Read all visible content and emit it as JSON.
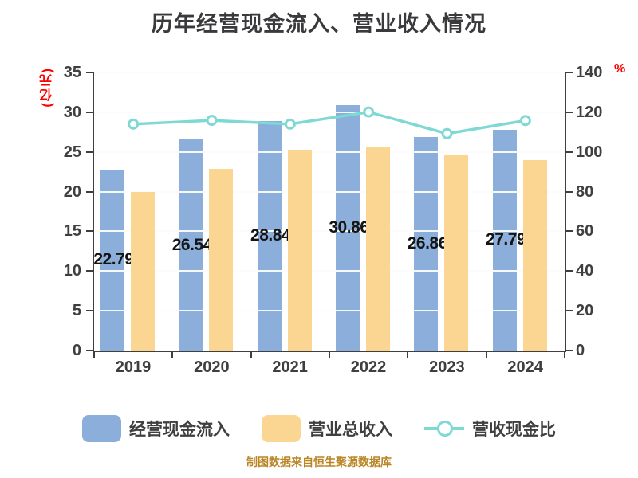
{
  "title": "历年经营现金流入、营业收入情况",
  "caption": "制图数据来自恒生聚源数据库",
  "colors": {
    "cash_inflow_bar": "#8baedb",
    "revenue_bar": "#fad692",
    "ratio_line": "#7ed9d4",
    "axis_unit_text": "#ff0000",
    "title_text": "#3a3a3c",
    "tick_text": "#3f3f3f",
    "caption_text": "#ba8525"
  },
  "left_axis": {
    "unit": "(亿元)",
    "min": 0,
    "max": 35,
    "step": 5,
    "ticks": [
      0,
      5,
      10,
      15,
      20,
      25,
      30,
      35
    ]
  },
  "right_axis": {
    "unit": "%",
    "min": 0,
    "max": 140,
    "step": 20,
    "ticks": [
      0,
      20,
      40,
      60,
      80,
      100,
      120,
      140
    ]
  },
  "chart_data": {
    "type": "bar",
    "title": "历年经营现金流入、营业收入情况",
    "categories": [
      "2019",
      "2020",
      "2021",
      "2022",
      "2023",
      "2024"
    ],
    "series": [
      {
        "name": "经营现金流入",
        "type": "bar",
        "axis": "left",
        "color": "#8baedb",
        "values": [
          22.79,
          26.543,
          28.84,
          30.868,
          26.86,
          27.791
        ],
        "data_labels": [
          "22.790",
          "26.543",
          "28.840",
          "30.868",
          "26.860",
          "27.791"
        ]
      },
      {
        "name": "营业总收入",
        "type": "bar",
        "axis": "left",
        "color": "#fad692",
        "values": [
          20.0,
          22.9,
          25.3,
          25.7,
          24.6,
          24.0
        ]
      },
      {
        "name": "营收现金比",
        "type": "line",
        "axis": "right",
        "color": "#7ed9d4",
        "marker": "circle",
        "values": [
          114.0,
          115.9,
          114.0,
          120.1,
          109.2,
          115.8
        ]
      }
    ],
    "ylabel_left": "(亿元)",
    "ylabel_right": "%",
    "ylim_left": [
      0,
      35
    ],
    "ylim_right": [
      0,
      140
    ],
    "grid": true,
    "legend_position": "bottom"
  },
  "legend": [
    {
      "label": "经营现金流入",
      "swatch": "bar",
      "color": "#8baedb"
    },
    {
      "label": "营业总收入",
      "swatch": "bar",
      "color": "#fad692"
    },
    {
      "label": "营收现金比",
      "swatch": "line-marker",
      "color": "#7ed9d4"
    }
  ]
}
